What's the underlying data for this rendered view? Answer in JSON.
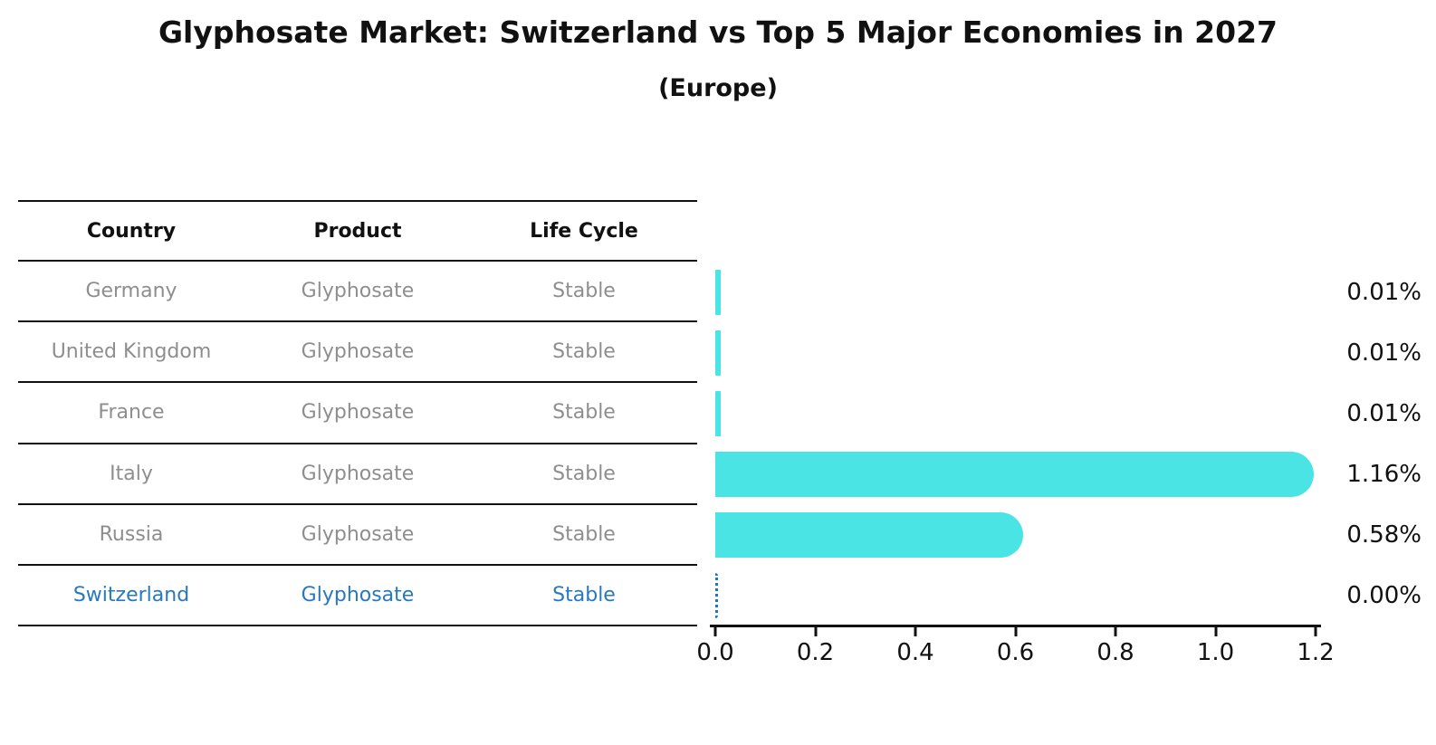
{
  "title": "Glyphosate Market: Switzerland vs Top 5 Major Economies in 2027",
  "subtitle": "(Europe)",
  "table": {
    "headers": [
      "Country",
      "Product",
      "Life Cycle"
    ],
    "rows": [
      {
        "country": "Germany",
        "product": "Glyphosate",
        "life_cycle": "Stable",
        "highlight": false
      },
      {
        "country": "United Kingdom",
        "product": "Glyphosate",
        "life_cycle": "Stable",
        "highlight": false
      },
      {
        "country": "France",
        "product": "Glyphosate",
        "life_cycle": "Stable",
        "highlight": false
      },
      {
        "country": "Italy",
        "product": "Glyphosate",
        "life_cycle": "Stable",
        "highlight": false
      },
      {
        "country": "Russia",
        "product": "Glyphosate",
        "life_cycle": "Stable",
        "highlight": false
      },
      {
        "country": "Switzerland",
        "product": "Glyphosate",
        "life_cycle": "Stable",
        "highlight": true
      }
    ]
  },
  "chart_data": {
    "type": "bar",
    "orientation": "horizontal",
    "title": "Glyphosate Market: Switzerland vs Top 5 Major Economies in 2027",
    "subtitle": "(Europe)",
    "categories": [
      "Germany",
      "United Kingdom",
      "France",
      "Italy",
      "Russia",
      "Switzerland"
    ],
    "values": [
      0.01,
      0.01,
      0.01,
      1.16,
      0.58,
      0.0
    ],
    "value_labels": [
      "0.01%",
      "0.01%",
      "0.01%",
      "1.16%",
      "0.58%",
      "0.00%"
    ],
    "xlim": [
      0,
      1.2
    ],
    "x_ticks": [
      0.0,
      0.2,
      0.4,
      0.6,
      0.8,
      1.0,
      1.2
    ],
    "x_tick_labels": [
      "0.0",
      "0.2",
      "0.4",
      "0.6",
      "0.8",
      "1.0",
      "1.2"
    ],
    "grid": false,
    "legend": null,
    "colors": {
      "bar": "#4be4e4",
      "zero_bar_outline": "#1f77b4",
      "highlight_text": "#2878bf",
      "row_text": "#8e8e8e",
      "header_text": "#111111",
      "axis": "#111111",
      "background": "#ffffff"
    }
  }
}
